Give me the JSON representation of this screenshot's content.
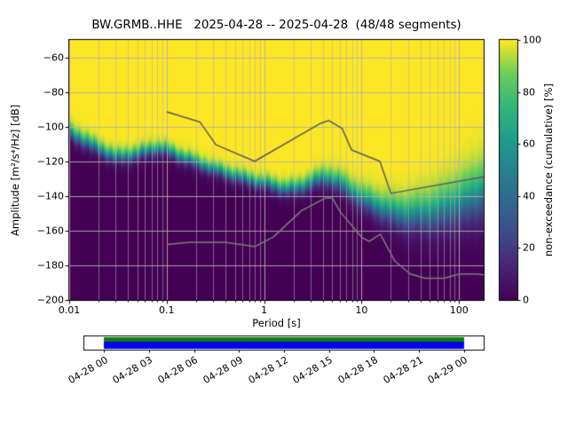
{
  "title": "BW.GRMB..HHE   2025-04-28 -- 2025-04-28  (48/48 segments)",
  "axes": {
    "xlabel": "Period [s]",
    "ylabel": "Amplitude [m²/s⁴/Hz] [dB]",
    "x_tick_labels": [
      "0.01",
      "0.1",
      "1",
      "10",
      "100"
    ],
    "x_tick_values": [
      0.01,
      0.1,
      1,
      10,
      100
    ],
    "y_tick_labels": [
      "−60",
      "−80",
      "−100",
      "−120",
      "−140",
      "−160",
      "−180",
      "−200"
    ],
    "y_tick_values": [
      -60,
      -80,
      -100,
      -120,
      -140,
      -160,
      -180,
      -200
    ],
    "grid": true
  },
  "colorbar": {
    "label": "non-exceedance (cumulative) [%]",
    "tick_labels": [
      "0",
      "20",
      "40",
      "60",
      "80",
      "100"
    ],
    "tick_values": [
      0,
      20,
      40,
      60,
      80,
      100
    ],
    "range": [
      0,
      100
    ],
    "colormap": "viridis",
    "stops": [
      [
        0.0,
        "#440154"
      ],
      [
        0.125,
        "#482475"
      ],
      [
        0.25,
        "#3e4a89"
      ],
      [
        0.375,
        "#31688e"
      ],
      [
        0.5,
        "#26828e"
      ],
      [
        0.625,
        "#1f9e89"
      ],
      [
        0.75,
        "#35b779"
      ],
      [
        0.875,
        "#6ece58"
      ],
      [
        1.0,
        "#fde725"
      ]
    ]
  },
  "colors": {
    "grid": "#b0b0b0",
    "high_noise_model_line": "#5a5a5a",
    "low_noise_model_line": "#7d7d7d",
    "axis": "#000000",
    "background": "#ffffff"
  },
  "chart_data": {
    "type": "heatmap",
    "title": "BW.GRMB..HHE   2025-04-28 -- 2025-04-28  (48/48 segments)",
    "x_axis": {
      "label": "Period [s]",
      "scale": "log",
      "range": [
        0.01,
        179
      ]
    },
    "y_axis": {
      "label": "Amplitude [m²/s⁴/Hz] [dB]",
      "range": [
        -200,
        -50
      ]
    },
    "z_axis": {
      "label": "non-exceedance (cumulative) [%]",
      "range": [
        0,
        100
      ],
      "colormap": "viridis"
    },
    "cumulative_median_curve_db": [
      [
        0.01,
        -103.5
      ],
      [
        0.015,
        -109
      ],
      [
        0.02,
        -113
      ],
      [
        0.03,
        -118
      ],
      [
        0.05,
        -116
      ],
      [
        0.07,
        -113.5
      ],
      [
        0.09,
        -113
      ],
      [
        0.12,
        -116
      ],
      [
        0.2,
        -121
      ],
      [
        0.35,
        -126
      ],
      [
        0.6,
        -130
      ],
      [
        1.0,
        -133
      ],
      [
        1.6,
        -136
      ],
      [
        2.2,
        -136
      ],
      [
        3.0,
        -132.5
      ],
      [
        4.0,
        -130
      ],
      [
        5.0,
        -130.5
      ],
      [
        6.5,
        -134
      ],
      [
        8.0,
        -138
      ],
      [
        10,
        -141.5
      ],
      [
        14,
        -146
      ],
      [
        20,
        -149.5
      ],
      [
        28,
        -151.5
      ],
      [
        45,
        -151
      ],
      [
        70,
        -148.5
      ],
      [
        100,
        -145
      ],
      [
        140,
        -141.5
      ],
      [
        179,
        -138.5
      ]
    ],
    "transition_sigma_db": [
      [
        0.01,
        2.3
      ],
      [
        0.1,
        2.0
      ],
      [
        1.0,
        2.0
      ],
      [
        3.0,
        2.4
      ],
      [
        8.0,
        3.2
      ],
      [
        20,
        4.5
      ],
      [
        60,
        6.5
      ],
      [
        179,
        8.5
      ]
    ],
    "noise_models": {
      "high_noise_model_db": [
        [
          0.1,
          -91.5
        ],
        [
          0.22,
          -97.4
        ],
        [
          0.32,
          -110.5
        ],
        [
          0.8,
          -120.0
        ],
        [
          3.8,
          -98.1
        ],
        [
          4.6,
          -96.5
        ],
        [
          6.3,
          -101.0
        ],
        [
          7.9,
          -113.5
        ],
        [
          15.4,
          -120.0
        ],
        [
          20.0,
          -138.5
        ],
        [
          179,
          -129.0
        ]
      ],
      "low_noise_model_db": [
        [
          0.1,
          -168.0
        ],
        [
          0.17,
          -166.7
        ],
        [
          0.4,
          -166.7
        ],
        [
          0.8,
          -169.2
        ],
        [
          1.24,
          -163.7
        ],
        [
          2.4,
          -148.6
        ],
        [
          4.3,
          -141.1
        ],
        [
          5.0,
          -141.1
        ],
        [
          6.0,
          -149.0
        ],
        [
          10.0,
          -163.8
        ],
        [
          12.0,
          -166.2
        ],
        [
          15.6,
          -162.1
        ],
        [
          21.9,
          -177.5
        ],
        [
          31.6,
          -185.0
        ],
        [
          45.0,
          -187.5
        ],
        [
          70.0,
          -187.5
        ],
        [
          101.0,
          -185.0
        ],
        [
          154.0,
          -185.0
        ],
        [
          179,
          -185.5
        ]
      ]
    }
  },
  "timeline": {
    "tick_labels": [
      "04-28 00",
      "04-28 03",
      "04-28 06",
      "04-28 09",
      "04-28 12",
      "04-28 15",
      "04-28 18",
      "04-28 21",
      "04-29 00"
    ],
    "bar_colors": {
      "top": "#008000",
      "bottom": "#0000ee"
    },
    "coverage_start_frac": 0.049,
    "coverage_end_frac": 0.951
  }
}
